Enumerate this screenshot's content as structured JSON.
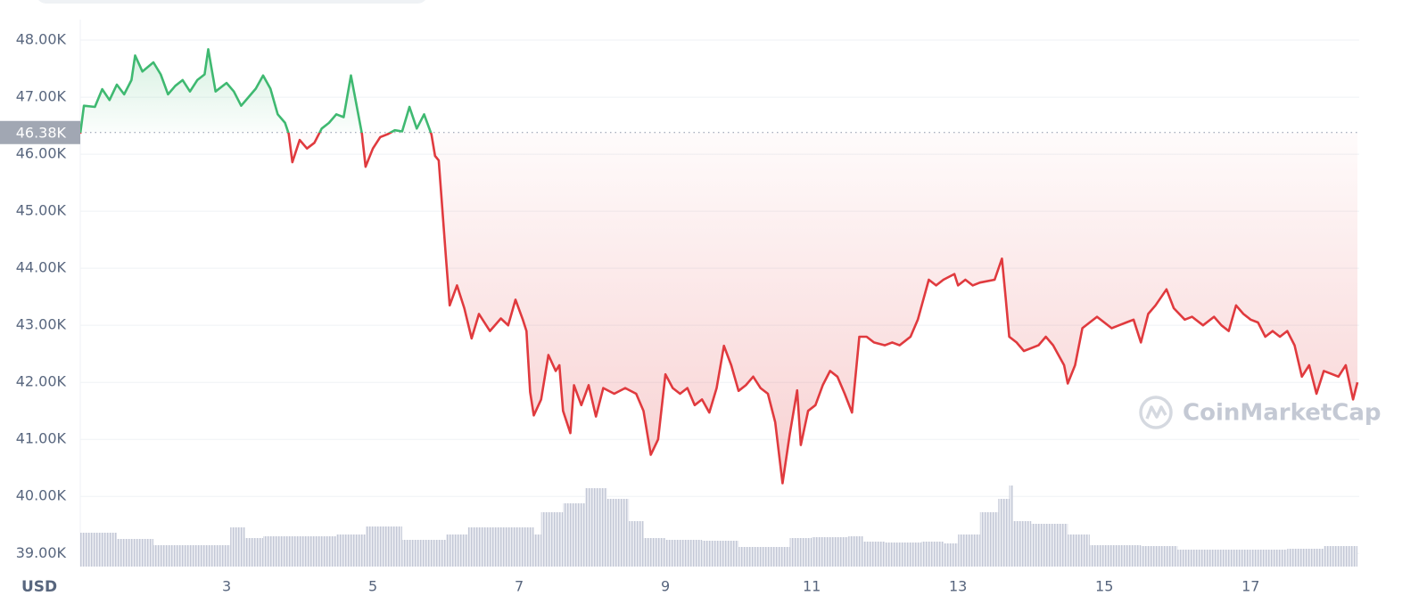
{
  "chart_data": {
    "type": "line",
    "currency": "USD",
    "watermark": "CoinMarketCap",
    "xlim": [
      1,
      18.46
    ],
    "xticks": [
      3,
      5,
      7,
      9,
      11,
      13,
      15,
      17
    ],
    "ylim": [
      38770,
      48360
    ],
    "yticks": [
      {
        "value": 39000,
        "label": "39.00K"
      },
      {
        "value": 40000,
        "label": "40.00K"
      },
      {
        "value": 41000,
        "label": "41.00K"
      },
      {
        "value": 42000,
        "label": "42.00K"
      },
      {
        "value": 43000,
        "label": "43.00K"
      },
      {
        "value": 44000,
        "label": "44.00K"
      },
      {
        "value": 45000,
        "label": "45.00K"
      },
      {
        "value": 46000,
        "label": "46.00K"
      },
      {
        "value": 47000,
        "label": "47.00K"
      },
      {
        "value": 48000,
        "label": "48.00K"
      }
    ],
    "grid": true,
    "baseline": {
      "value": 46380,
      "label": "46.38K"
    },
    "up_color": "#3fb971",
    "down_color": "#e03a3e",
    "x": [
      1.0,
      1.05,
      1.2,
      1.3,
      1.4,
      1.5,
      1.6,
      1.7,
      1.75,
      1.85,
      2.0,
      2.1,
      2.2,
      2.3,
      2.4,
      2.5,
      2.6,
      2.7,
      2.75,
      2.85,
      3.0,
      3.1,
      3.2,
      3.3,
      3.4,
      3.5,
      3.6,
      3.7,
      3.8,
      3.85,
      3.9,
      4.0,
      4.1,
      4.2,
      4.3,
      4.4,
      4.5,
      4.6,
      4.7,
      4.8,
      4.85,
      4.9,
      5.0,
      5.1,
      5.2,
      5.3,
      5.4,
      5.5,
      5.6,
      5.7,
      5.8,
      5.85,
      5.9,
      6.0,
      6.05,
      6.15,
      6.25,
      6.35,
      6.45,
      6.6,
      6.75,
      6.85,
      6.95,
      7.05,
      7.1,
      7.15,
      7.2,
      7.3,
      7.4,
      7.5,
      7.55,
      7.6,
      7.7,
      7.75,
      7.85,
      7.95,
      8.05,
      8.15,
      8.3,
      8.45,
      8.6,
      8.7,
      8.8,
      8.9,
      9.0,
      9.1,
      9.2,
      9.3,
      9.4,
      9.5,
      9.6,
      9.7,
      9.8,
      9.9,
      10.0,
      10.1,
      10.2,
      10.3,
      10.4,
      10.5,
      10.6,
      10.7,
      10.8,
      10.85,
      10.95,
      11.05,
      11.15,
      11.25,
      11.35,
      11.45,
      11.55,
      11.65,
      11.75,
      11.85,
      12.0,
      12.1,
      12.2,
      12.35,
      12.45,
      12.6,
      12.7,
      12.8,
      12.95,
      13.0,
      13.1,
      13.2,
      13.3,
      13.5,
      13.6,
      13.65,
      13.7,
      13.8,
      13.9,
      14.0,
      14.1,
      14.2,
      14.3,
      14.45,
      14.5,
      14.6,
      14.7,
      14.8,
      14.9,
      15.0,
      15.1,
      15.2,
      15.3,
      15.4,
      15.5,
      15.6,
      15.7,
      15.85,
      15.95,
      16.1,
      16.2,
      16.35,
      16.5,
      16.6,
      16.7,
      16.8,
      16.9,
      17.0,
      17.1,
      17.2,
      17.3,
      17.4,
      17.5,
      17.6,
      17.7,
      17.8,
      17.9,
      18.0,
      18.1,
      18.2,
      18.3,
      18.4,
      18.46
    ],
    "values": [
      46360,
      46850,
      46830,
      47140,
      46950,
      47220,
      47050,
      47300,
      47730,
      47450,
      47610,
      47400,
      47050,
      47200,
      47300,
      47100,
      47300,
      47400,
      47840,
      47100,
      47250,
      47100,
      46850,
      47000,
      47150,
      47380,
      47150,
      46700,
      46550,
      46360,
      45860,
      46250,
      46100,
      46200,
      46450,
      46550,
      46700,
      46650,
      47380,
      46700,
      46360,
      45780,
      46100,
      46300,
      46350,
      46420,
      46400,
      46830,
      46450,
      46700,
      46350,
      45970,
      45890,
      44170,
      43350,
      43700,
      43300,
      42770,
      43200,
      42900,
      43120,
      43000,
      43450,
      43100,
      42900,
      41830,
      41420,
      41700,
      42480,
      42200,
      42300,
      41500,
      41110,
      41950,
      41600,
      41950,
      41400,
      41900,
      41800,
      41900,
      41800,
      41500,
      40730,
      41000,
      42140,
      41900,
      41800,
      41900,
      41600,
      41700,
      41470,
      41900,
      42640,
      42300,
      41850,
      41950,
      42100,
      41900,
      41800,
      41300,
      40230,
      41100,
      41860,
      40900,
      41500,
      41600,
      41950,
      42200,
      42100,
      41800,
      41470,
      42800,
      42800,
      42700,
      42650,
      42700,
      42650,
      42800,
      43100,
      43800,
      43700,
      43800,
      43900,
      43700,
      43800,
      43700,
      43750,
      43800,
      44170,
      43500,
      42800,
      42700,
      42550,
      42600,
      42650,
      42800,
      42650,
      42300,
      41980,
      42300,
      42950,
      43050,
      43150,
      43050,
      42950,
      43000,
      43050,
      43100,
      42700,
      43200,
      43350,
      43630,
      43300,
      43100,
      43150,
      43000,
      43150,
      43000,
      42900,
      43350,
      43200,
      43100,
      43050,
      42800,
      42900,
      42800,
      42900,
      42650,
      42100,
      42300,
      41800,
      42200,
      42150,
      42100,
      42300,
      41700,
      42000
    ],
    "volume": {
      "color": "#c3c8d6",
      "ylim": [
        0,
        100
      ],
      "x": [
        1,
        1.5,
        2,
        3,
        3.05,
        3.25,
        3.5,
        4.5,
        4.9,
        5.4,
        5.85,
        6,
        6.3,
        7,
        7.2,
        7.3,
        7.6,
        7.9,
        8.2,
        8.5,
        8.7,
        9,
        9.5,
        10,
        10.7,
        11,
        11.5,
        11.7,
        12,
        12.5,
        12.8,
        13,
        13.3,
        13.55,
        13.7,
        13.75,
        14,
        14.5,
        14.8,
        15.5,
        16,
        17,
        17.5,
        18
      ],
      "values": [
        38,
        31,
        24,
        24,
        44,
        32,
        34,
        36,
        45,
        30,
        30,
        36,
        44,
        44,
        36,
        61,
        71,
        88,
        76,
        51,
        32,
        30,
        29,
        22,
        32,
        33,
        34,
        28,
        27,
        28,
        26,
        36,
        61,
        76,
        91,
        51,
        48,
        36,
        24,
        23,
        19,
        19,
        20,
        23
      ]
    }
  }
}
